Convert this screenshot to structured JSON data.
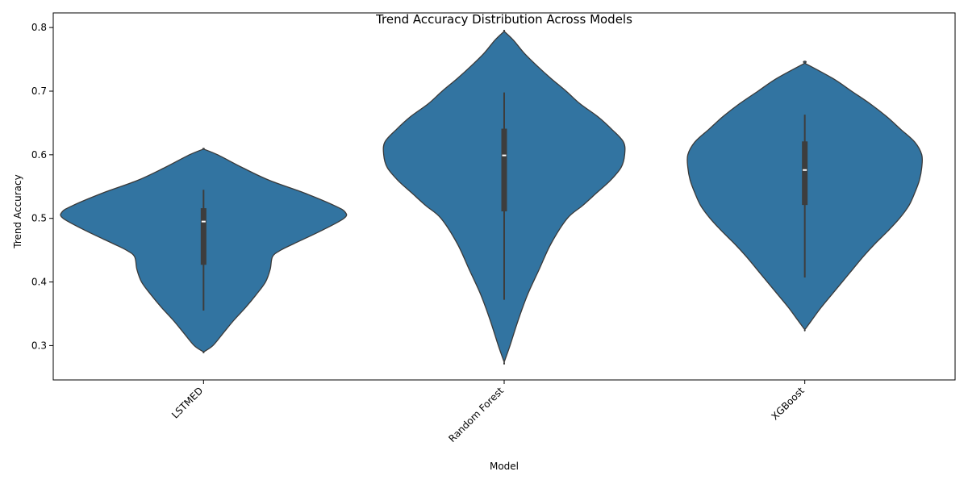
{
  "chart_data": {
    "type": "violin",
    "title": "Trend Accuracy Distribution Across Models",
    "xlabel": "Model",
    "ylabel": "Trend Accuracy",
    "categories": [
      "LSTMED",
      "Random Forest",
      "XGBoost"
    ],
    "ylim": [
      0.246,
      0.823
    ],
    "yticks": [
      0.3,
      0.4,
      0.5,
      0.6,
      0.7,
      0.8
    ],
    "ytick_labels": [
      "0.3",
      "0.4",
      "0.5",
      "0.6",
      "0.7",
      "0.8"
    ],
    "x_tick_rotation_deg": 45,
    "grid": false,
    "legend": "none",
    "colors": {
      "violin_fill": "#3274a1",
      "violin_edge": "#3a3a3a",
      "box": "#3d3d3d",
      "median": "#ffffff"
    },
    "series": [
      {
        "category": "LSTMED",
        "whisker": [
          0.355,
          0.545
        ],
        "q1": 0.427,
        "median": 0.495,
        "q3": 0.516,
        "density_profile": [
          [
            0.29,
            0.0
          ],
          [
            0.3,
            0.04
          ],
          [
            0.32,
            0.085
          ],
          [
            0.34,
            0.13
          ],
          [
            0.36,
            0.18
          ],
          [
            0.38,
            0.225
          ],
          [
            0.4,
            0.265
          ],
          [
            0.42,
            0.285
          ],
          [
            0.44,
            0.295
          ],
          [
            0.45,
            0.33
          ],
          [
            0.46,
            0.385
          ],
          [
            0.48,
            0.5
          ],
          [
            0.5,
            0.6
          ],
          [
            0.51,
            0.605
          ],
          [
            0.52,
            0.56
          ],
          [
            0.54,
            0.43
          ],
          [
            0.56,
            0.28
          ],
          [
            0.58,
            0.165
          ],
          [
            0.6,
            0.06
          ],
          [
            0.609,
            0.0
          ]
        ]
      },
      {
        "category": "Random Forest",
        "whisker": [
          0.372,
          0.698
        ],
        "q1": 0.511,
        "median": 0.599,
        "q3": 0.641,
        "density_profile": [
          [
            0.274,
            0.0
          ],
          [
            0.3,
            0.025
          ],
          [
            0.34,
            0.06
          ],
          [
            0.38,
            0.1
          ],
          [
            0.42,
            0.15
          ],
          [
            0.46,
            0.2
          ],
          [
            0.5,
            0.27
          ],
          [
            0.52,
            0.335
          ],
          [
            0.54,
            0.395
          ],
          [
            0.56,
            0.455
          ],
          [
            0.58,
            0.5
          ],
          [
            0.6,
            0.515
          ],
          [
            0.62,
            0.51
          ],
          [
            0.64,
            0.46
          ],
          [
            0.66,
            0.4
          ],
          [
            0.68,
            0.325
          ],
          [
            0.7,
            0.265
          ],
          [
            0.72,
            0.2
          ],
          [
            0.74,
            0.14
          ],
          [
            0.76,
            0.085
          ],
          [
            0.78,
            0.04
          ],
          [
            0.794,
            0.0
          ]
        ]
      },
      {
        "category": "XGBoost",
        "whisker": [
          0.407,
          0.663
        ],
        "q1": 0.521,
        "median": 0.576,
        "q3": 0.621,
        "density_profile": [
          [
            0.325,
            0.0
          ],
          [
            0.34,
            0.03
          ],
          [
            0.36,
            0.07
          ],
          [
            0.38,
            0.115
          ],
          [
            0.4,
            0.16
          ],
          [
            0.42,
            0.205
          ],
          [
            0.44,
            0.25
          ],
          [
            0.46,
            0.3
          ],
          [
            0.48,
            0.355
          ],
          [
            0.5,
            0.405
          ],
          [
            0.52,
            0.445
          ],
          [
            0.54,
            0.47
          ],
          [
            0.56,
            0.49
          ],
          [
            0.58,
            0.5
          ],
          [
            0.6,
            0.5
          ],
          [
            0.62,
            0.47
          ],
          [
            0.64,
            0.41
          ],
          [
            0.66,
            0.35
          ],
          [
            0.68,
            0.28
          ],
          [
            0.7,
            0.2
          ],
          [
            0.72,
            0.12
          ],
          [
            0.744,
            0.0
          ]
        ]
      }
    ]
  }
}
